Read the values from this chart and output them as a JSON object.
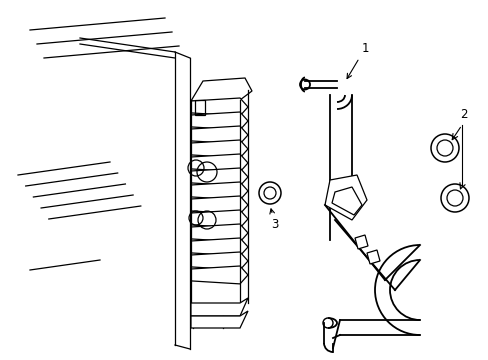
{
  "background_color": "#ffffff",
  "line_color": "#000000",
  "fig_width": 4.89,
  "fig_height": 3.6,
  "dpi": 100,
  "label_fontsize": 8.5,
  "pipe_lw": 1.3,
  "thin_lw": 0.9
}
